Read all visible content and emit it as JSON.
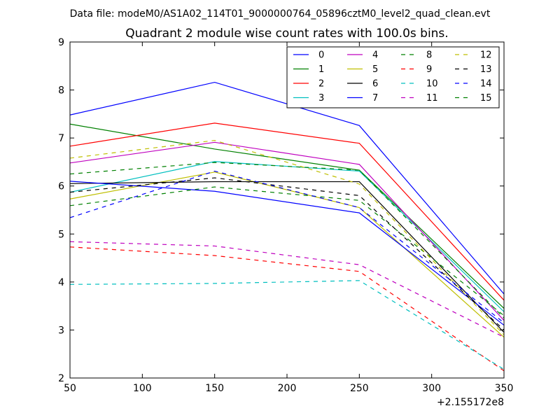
{
  "chart_data": {
    "type": "line",
    "suptitle": "Data file: modeM0/AS1A02_114T01_9000000764_05896cztM0_level2_quad_clean.evt",
    "title": "Quadrant 2 module wise count rates with 100.0s bins.",
    "xlabel": "",
    "ylabel": "",
    "x_offset_label": "+2.155172e8",
    "xlim": [
      50,
      350
    ],
    "ylim": [
      2,
      9
    ],
    "x_ticks": [
      50,
      100,
      150,
      200,
      250,
      300,
      350
    ],
    "y_ticks": [
      2,
      3,
      4,
      5,
      6,
      7,
      8,
      9
    ],
    "x": [
      50,
      150,
      250,
      350
    ],
    "legend_position": "top-right",
    "grid": false,
    "series": [
      {
        "name": "0",
        "color": "#0000ff",
        "style": "solid",
        "values": [
          7.48,
          8.16,
          7.26,
          3.75
        ]
      },
      {
        "name": "1",
        "color": "#008000",
        "style": "solid",
        "values": [
          7.29,
          6.77,
          6.33,
          3.45
        ]
      },
      {
        "name": "2",
        "color": "#ff0000",
        "style": "solid",
        "values": [
          6.83,
          7.31,
          6.89,
          3.62
        ]
      },
      {
        "name": "3",
        "color": "#00bfbf",
        "style": "solid",
        "values": [
          5.87,
          6.51,
          6.31,
          3.38
        ]
      },
      {
        "name": "4",
        "color": "#bf00bf",
        "style": "solid",
        "values": [
          6.48,
          6.91,
          6.45,
          3.2
        ]
      },
      {
        "name": "5",
        "color": "#bfbf00",
        "style": "solid",
        "values": [
          5.73,
          6.29,
          5.55,
          2.85
        ]
      },
      {
        "name": "6",
        "color": "#000000",
        "style": "solid",
        "values": [
          6.05,
          6.09,
          6.09,
          2.95
        ]
      },
      {
        "name": "7",
        "color": "#0000ff",
        "style": "solid",
        "values": [
          6.1,
          5.89,
          5.44,
          3.1
        ]
      },
      {
        "name": "8",
        "color": "#008000",
        "style": "dashed",
        "values": [
          5.59,
          5.98,
          5.7,
          3.3
        ]
      },
      {
        "name": "9",
        "color": "#ff0000",
        "style": "dashed",
        "values": [
          4.73,
          4.55,
          4.22,
          2.15
        ]
      },
      {
        "name": "10",
        "color": "#00bfbf",
        "style": "dashed",
        "values": [
          3.95,
          3.97,
          4.03,
          2.18
        ]
      },
      {
        "name": "11",
        "color": "#bf00bf",
        "style": "dashed",
        "values": [
          4.84,
          4.75,
          4.36,
          2.85
        ]
      },
      {
        "name": "12",
        "color": "#bfbf00",
        "style": "dashed",
        "values": [
          6.58,
          6.95,
          6.04,
          2.9
        ]
      },
      {
        "name": "13",
        "color": "#000000",
        "style": "dashed",
        "values": [
          5.87,
          6.17,
          5.8,
          3.0
        ]
      },
      {
        "name": "14",
        "color": "#0000ff",
        "style": "dashed",
        "values": [
          5.34,
          6.31,
          5.55,
          3.15
        ]
      },
      {
        "name": "15",
        "color": "#008000",
        "style": "dashed",
        "values": [
          6.25,
          6.49,
          6.33,
          3.25
        ]
      }
    ]
  }
}
